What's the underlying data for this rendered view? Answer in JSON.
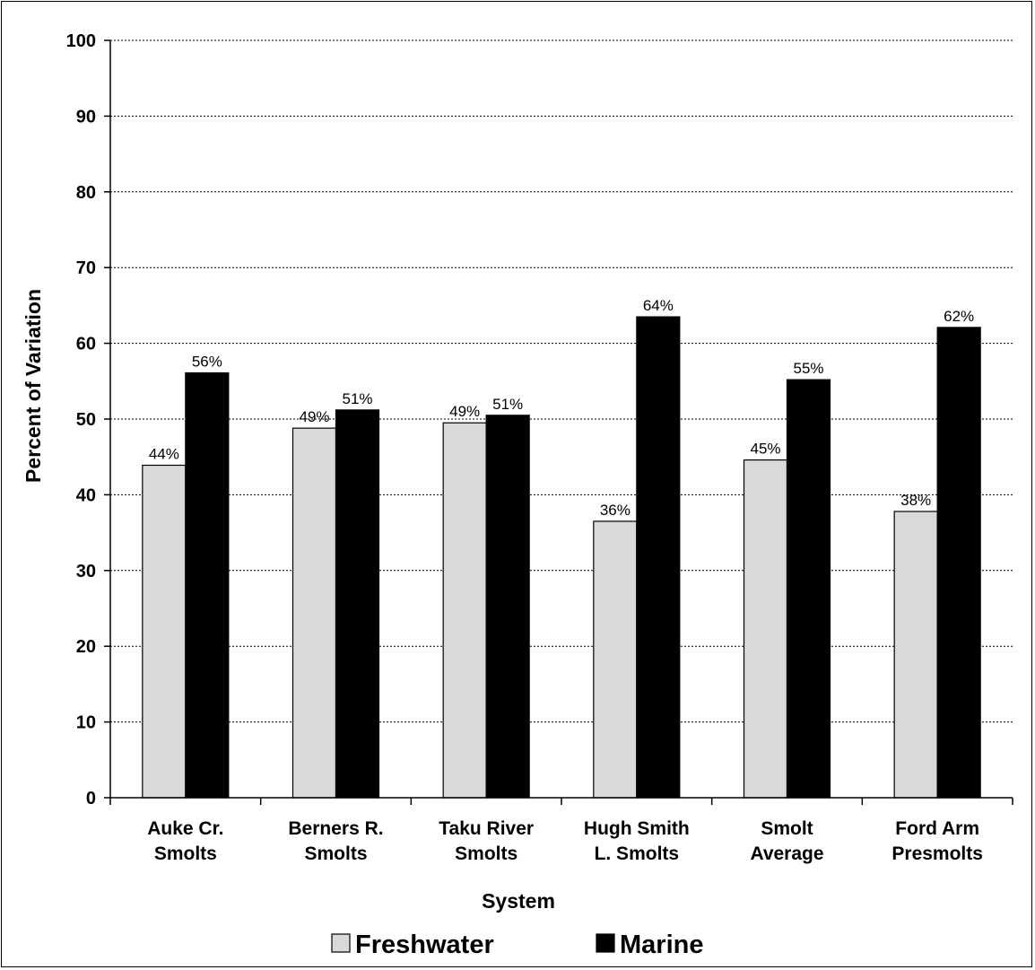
{
  "chart_data": {
    "type": "bar",
    "title": "",
    "xlabel": "System",
    "ylabel": "Percent of Variation",
    "ylim": [
      0,
      100
    ],
    "yticks": [
      0,
      10,
      20,
      30,
      40,
      50,
      60,
      70,
      80,
      90,
      100
    ],
    "grid": true,
    "legend_position": "bottom",
    "categories": [
      [
        "Auke Cr.",
        "Smolts"
      ],
      [
        "Berners R.",
        "Smolts"
      ],
      [
        "Taku River",
        "Smolts"
      ],
      [
        "Hugh Smith",
        "L. Smolts"
      ],
      [
        "Smolt",
        "Average"
      ],
      [
        "Ford Arm",
        "Presmolts"
      ]
    ],
    "series": [
      {
        "name": "Freshwater",
        "color": "#d9d9d9",
        "values": [
          43.9,
          48.8,
          49.5,
          36.5,
          44.6,
          37.8
        ],
        "labels": [
          "44%",
          "49%",
          "49%",
          "36%",
          "45%",
          "38%"
        ]
      },
      {
        "name": "Marine",
        "color": "#000000",
        "values": [
          56.1,
          51.2,
          50.5,
          63.5,
          55.2,
          62.1
        ],
        "labels": [
          "56%",
          "51%",
          "51%",
          "64%",
          "55%",
          "62%"
        ]
      }
    ]
  }
}
